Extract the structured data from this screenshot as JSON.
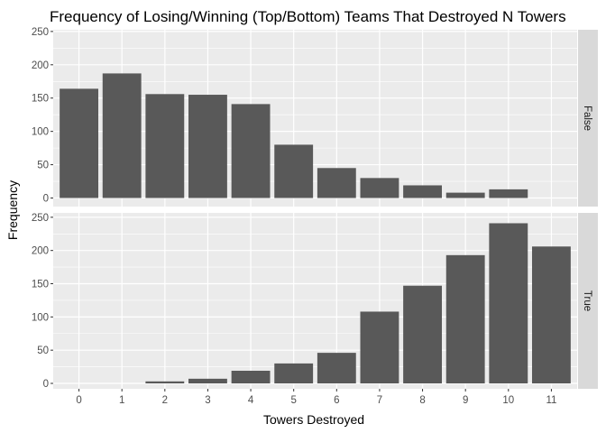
{
  "chart_data": {
    "type": "bar",
    "title": "Frequency of Losing/Winning (Top/Bottom) Teams That Destroyed N Towers",
    "xlabel": "Towers Destroyed",
    "ylabel": "Frequency",
    "categories": [
      "0",
      "1",
      "2",
      "3",
      "4",
      "5",
      "6",
      "7",
      "8",
      "9",
      "10",
      "11"
    ],
    "ylim": [
      0,
      250
    ],
    "yticks": [
      0,
      50,
      100,
      150,
      200,
      250
    ],
    "grid": true,
    "facet_strip_position": "right",
    "colors": {
      "bar": "#595959",
      "panel_bg": "#ebebeb",
      "strip_bg": "#d9d9d9",
      "grid": "#ffffff",
      "tick_text": "#4d4d4d"
    },
    "panels": [
      {
        "label": "False",
        "values": [
          164,
          187,
          156,
          155,
          141,
          80,
          45,
          30,
          19,
          8,
          13,
          null
        ]
      },
      {
        "label": "True",
        "values": [
          0,
          0,
          3,
          7,
          19,
          30,
          46,
          108,
          147,
          193,
          241,
          206
        ]
      }
    ]
  }
}
